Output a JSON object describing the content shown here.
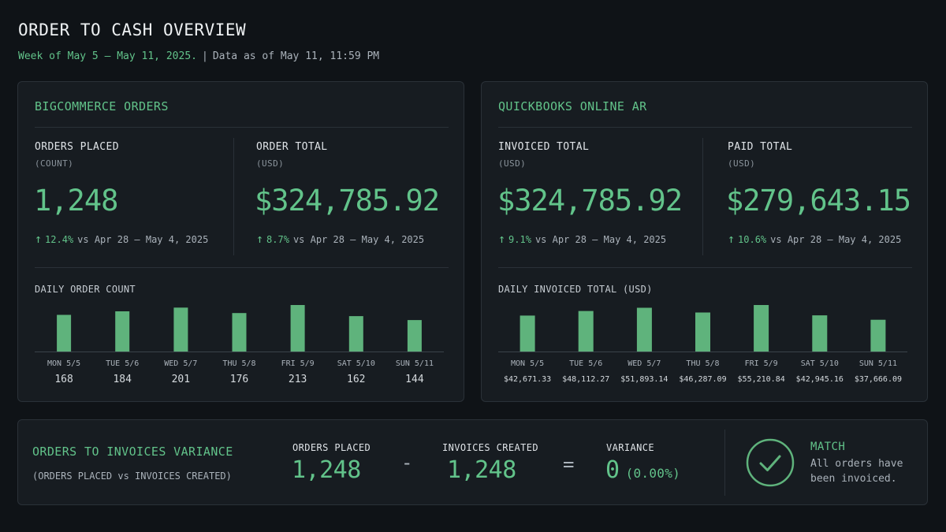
{
  "header": {
    "title": "ORDER TO CASH OVERVIEW",
    "week": "Week of May 5 – May 11, 2025.",
    "separator": "|",
    "data_as_of": "Data as of May 11, 11:59 PM"
  },
  "bigcommerce": {
    "title": "BIGCOMMERCE ORDERS",
    "kpis": [
      {
        "label": "ORDERS PLACED",
        "unit": "(COUNT)",
        "value": "1,248",
        "delta_pct": "12.4%",
        "delta_text": "vs Apr 28 – May 4, 2025"
      },
      {
        "label": "ORDER TOTAL",
        "unit": "(USD)",
        "value": "$324,785.92",
        "delta_pct": "8.7%",
        "delta_text": "vs Apr 28 – May 4, 2025"
      }
    ],
    "chart_label": "DAILY ORDER COUNT"
  },
  "quickbooks": {
    "title": "QUICKBOOKS ONLINE AR",
    "kpis": [
      {
        "label": "INVOICED TOTAL",
        "unit": "(USD)",
        "value": "$324,785.92",
        "delta_pct": "9.1%",
        "delta_text": "vs Apr 28 – May 4, 2025"
      },
      {
        "label": "PAID TOTAL",
        "unit": "(USD)",
        "value": "$279,643.15",
        "delta_pct": "10.6%",
        "delta_text": "vs Apr 28 – May 4, 2025"
      }
    ],
    "chart_label": "DAILY INVOICED TOTAL (USD)"
  },
  "chart_data": [
    {
      "type": "bar",
      "title": "DAILY ORDER COUNT",
      "categories": [
        "MON 5/5",
        "TUE 5/6",
        "WED 5/7",
        "THU 5/8",
        "FRI 5/9",
        "SAT 5/10",
        "SUN 5/11"
      ],
      "values": [
        168,
        184,
        201,
        176,
        213,
        162,
        144
      ],
      "value_labels": [
        "168",
        "184",
        "201",
        "176",
        "213",
        "162",
        "144"
      ],
      "ylim": [
        0,
        213
      ],
      "color": "#5fb37c"
    },
    {
      "type": "bar",
      "title": "DAILY INVOICED TOTAL (USD)",
      "categories": [
        "MON 5/5",
        "TUE 5/6",
        "WED 5/7",
        "THU 5/8",
        "FRI 5/9",
        "SAT 5/10",
        "SUN 5/11"
      ],
      "values": [
        42671.33,
        48112.27,
        51893.14,
        46287.09,
        55210.84,
        42945.16,
        37666.09
      ],
      "value_labels": [
        "$42,671.33",
        "$48,112.27",
        "$51,893.14",
        "$46,287.09",
        "$55,210.84",
        "$42,945.16",
        "$37,666.09"
      ],
      "ylim": [
        0,
        55210.84
      ],
      "color": "#5fb37c"
    }
  ],
  "variance": {
    "title": "ORDERS TO INVOICES VARIANCE",
    "subtitle": "(ORDERS PLACED vs INVOICES CREATED)",
    "orders_label": "ORDERS PLACED",
    "orders_value": "1,248",
    "minus": "-",
    "invoices_label": "INVOICES CREATED",
    "invoices_value": "1,248",
    "equals": "=",
    "variance_label": "VARIANCE",
    "variance_value": "0",
    "variance_pct": "(0.00%)",
    "match_title": "MATCH",
    "match_line1": "All orders have",
    "match_line2": "been invoiced."
  },
  "colors": {
    "accent": "#62c38a",
    "bar": "#5fb37c",
    "background": "#0f1317",
    "panel": "#171c21"
  },
  "icons": {
    "delta": "arrow-up-icon",
    "match": "check-circle-icon"
  }
}
